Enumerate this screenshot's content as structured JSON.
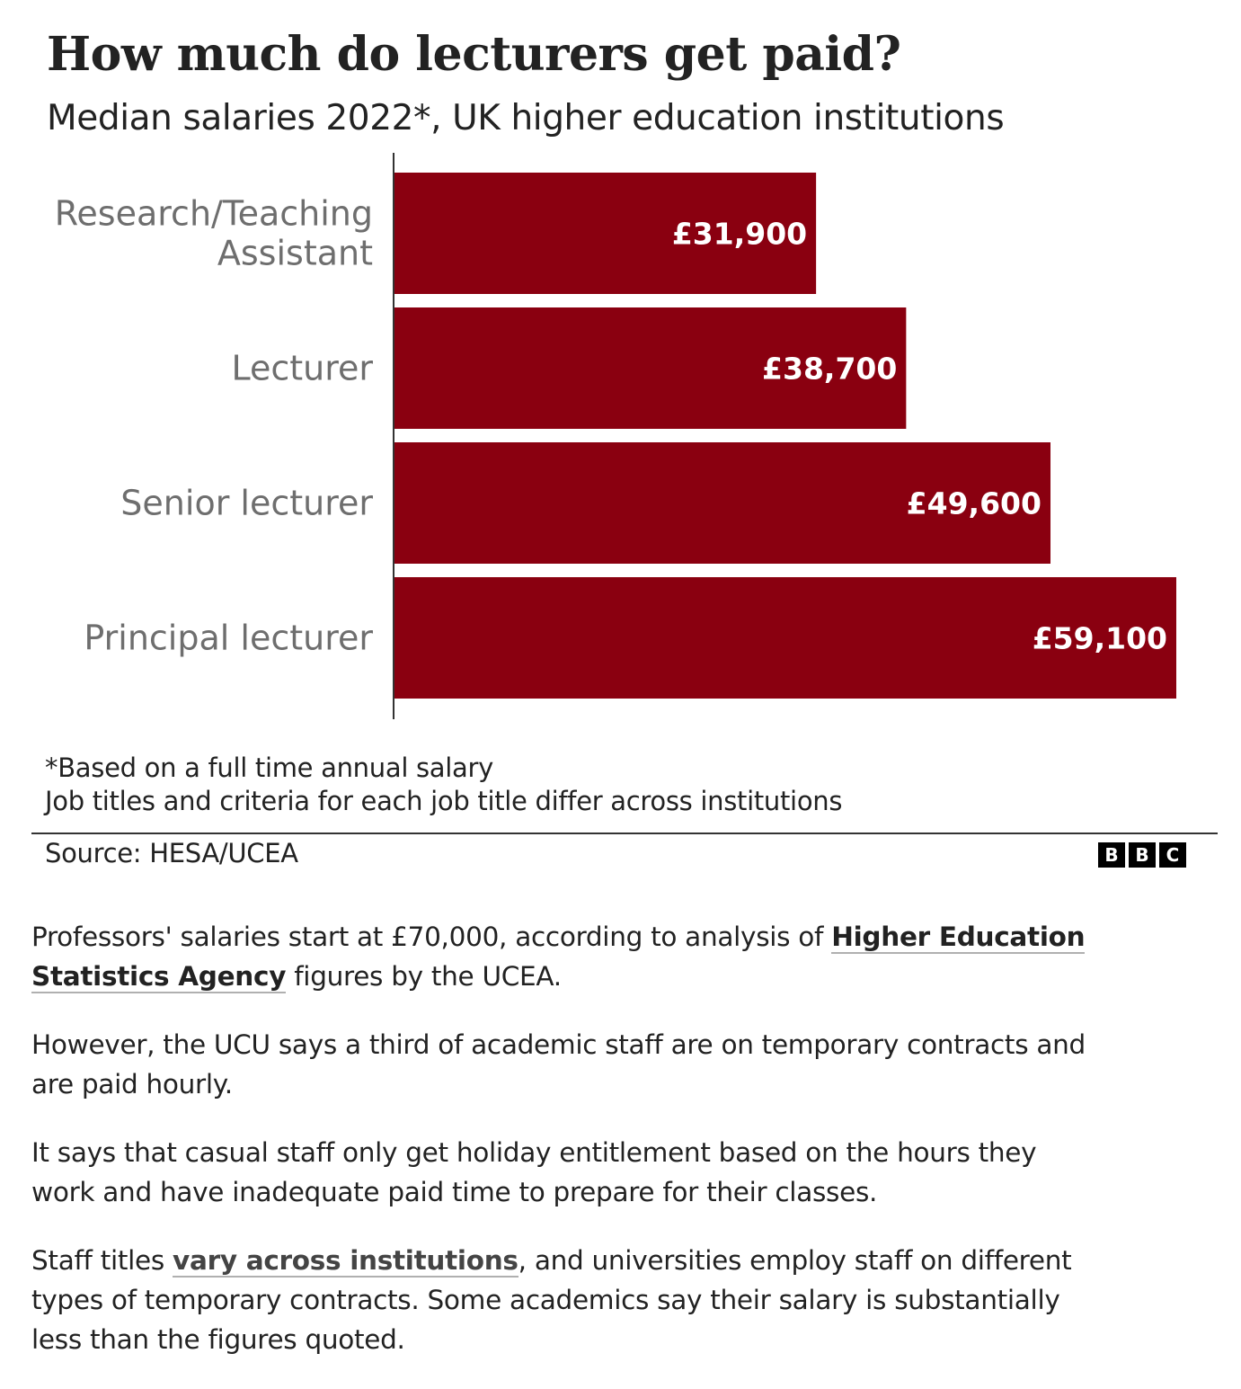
{
  "title": "How much do lecturers get paid?",
  "subtitle": "Median salaries 2022*, UK higher education institutions",
  "chart_data": {
    "type": "bar",
    "orientation": "horizontal",
    "categories": [
      [
        "Research/Teaching",
        "Assistant"
      ],
      [
        "Lecturer"
      ],
      [
        "Senior lecturer"
      ],
      [
        "Principal lecturer"
      ]
    ],
    "values": [
      31900,
      38700,
      49600,
      59100
    ],
    "value_labels": [
      "£31,900",
      "£38,700",
      "£49,600",
      "£59,100"
    ],
    "xlim": [
      0,
      59100
    ],
    "grid": false,
    "bar_color": "#8a0010",
    "label_color": "#6e6e6e"
  },
  "footnotes": [
    "*Based on a full time annual salary",
    "Job titles and criteria for each job title differ across institutions"
  ],
  "source": "Source: HESA/UCEA",
  "logo": [
    "B",
    "B",
    "C"
  ],
  "article": {
    "p1_before": "Professors' salaries start at £70,000, according to analysis of ",
    "p1_link": "Higher Education Statistics Agency",
    "p1_after": " figures by the UCEA.",
    "p2": "However, the UCU says a third of academic staff are on temporary contracts and are paid hourly.",
    "p3": "It says that casual staff only get holiday entitlement based on the hours they work and have inadequate paid time to prepare for their classes.",
    "p4_before": "Staff titles ",
    "p4_link": "vary across institutions",
    "p4_after": ", and universities employ staff on different types of temporary contracts. Some academics say their salary is substantially less than the figures quoted."
  }
}
